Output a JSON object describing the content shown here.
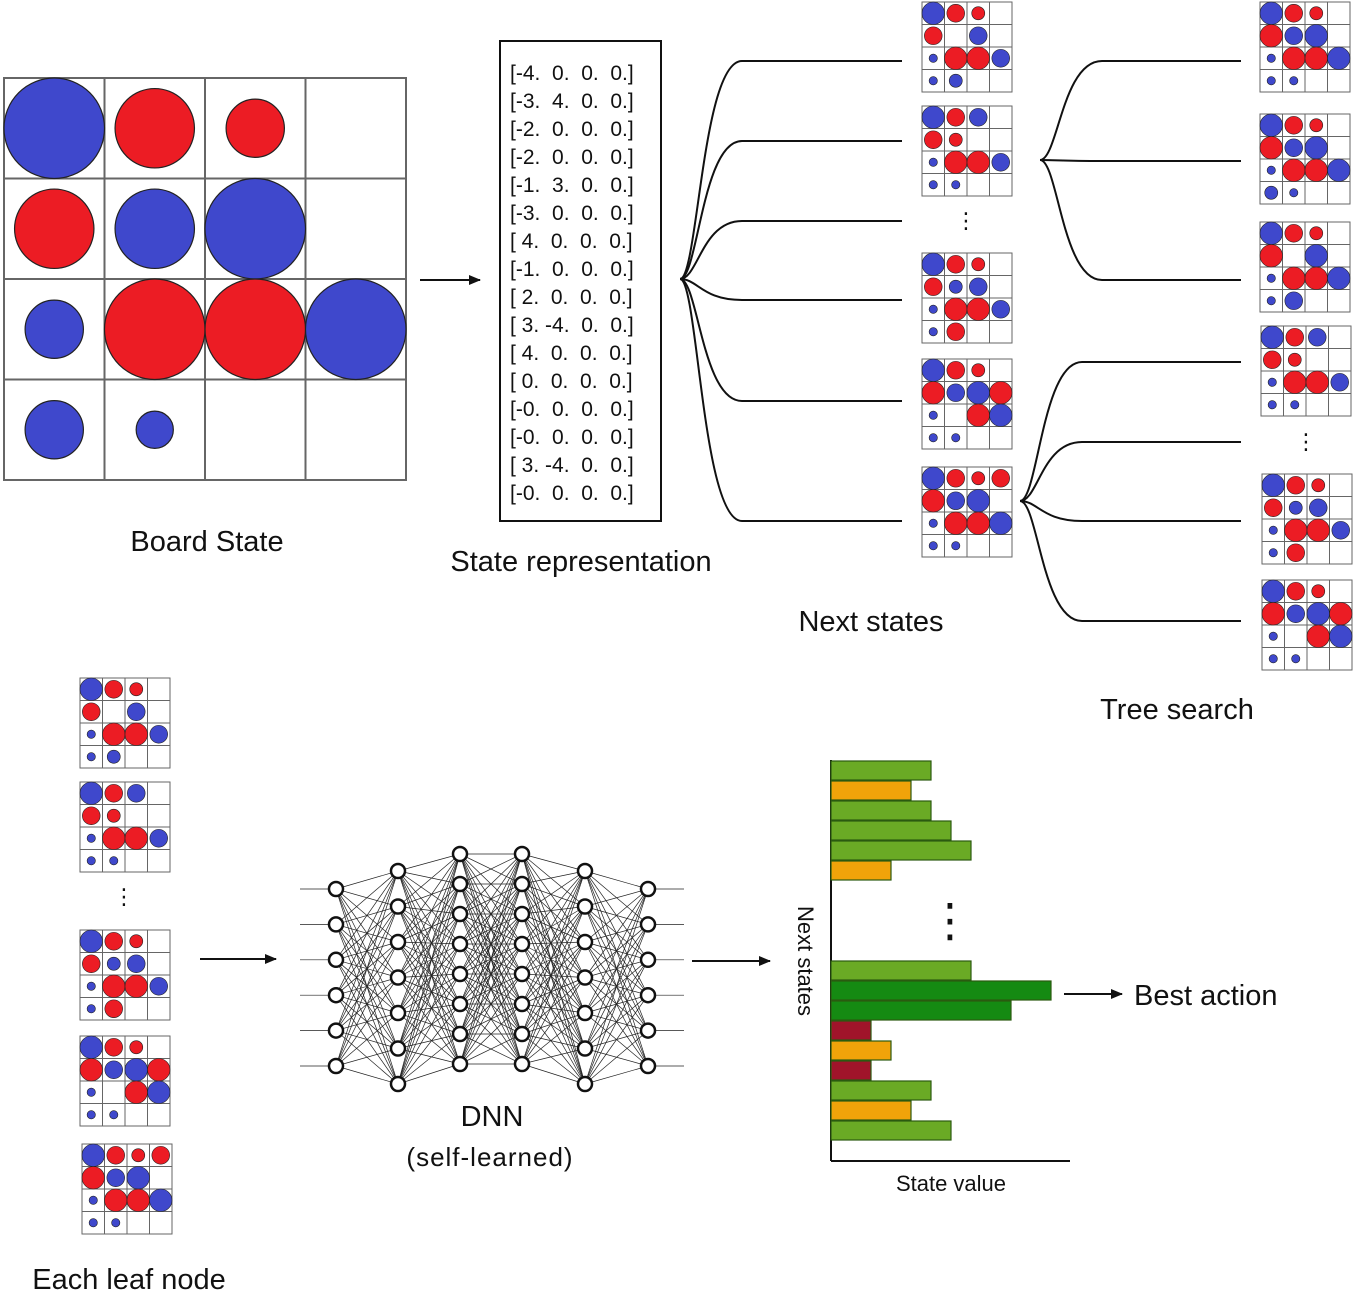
{
  "labels": {
    "board_state": "Board State",
    "state_representation": "State representation",
    "next_states": "Next states",
    "tree_search": "Tree search",
    "each_leaf_node": "Each leaf node",
    "dnn": "DNN",
    "dnn_sub": "(self-learned)",
    "chart_y_axis": "Next states",
    "chart_x_axis": "State value",
    "best_action": "Best action",
    "ellipsis": "⋮"
  },
  "state_matrix": [
    "[-4.  0.  0.  0.]",
    "[-3.  4.  0.  0.]",
    "[-2.  0.  0.  0.]",
    "[-2.  0.  0.  0.]",
    "[-1.  3.  0.  0.]",
    "[-3.  0.  0.  0.]",
    "[ 4.  0.  0.  0.]",
    "[-1.  0.  0.  0.]",
    "[ 2.  0.  0.  0.]",
    "[ 3. -4.  0.  0.]",
    "[ 4.  0.  0.  0.]",
    "[ 0.  0.  0.  0.]",
    "[-0.  0.  0.  0.]",
    "[-0.  0.  0.  0.]",
    "[ 3. -4.  0.  0.]",
    "[-0.  0.  0.  0.]"
  ],
  "colors": {
    "red": "#ec1c24",
    "blue": "#3f48cc",
    "grid": "#666666",
    "bar_green": "#6aaa25",
    "bar_dark_green": "#158a12",
    "bar_orange": "#f0a30a",
    "bar_dark_red": "#a0142a"
  },
  "board": [
    [
      -4,
      3,
      2,
      0
    ],
    [
      3,
      -3,
      -4,
      0
    ],
    [
      -2,
      4,
      4,
      -4
    ],
    [
      -2,
      -1,
      0,
      0
    ]
  ],
  "chart_data": {
    "type": "bar",
    "orientation": "horizontal",
    "title": "",
    "xlabel": "State value",
    "ylabel": "Next states",
    "values": [
      5,
      4,
      5,
      6,
      7,
      3,
      null,
      7,
      11,
      9,
      2,
      3,
      2,
      5,
      4,
      6
    ],
    "bar_colors": [
      "green",
      "orange",
      "green",
      "green",
      "green",
      "orange",
      "gap",
      "green",
      "dark-green",
      "dark-green",
      "dark-red",
      "orange",
      "dark-red",
      "green",
      "orange",
      "green"
    ],
    "best_index": 8,
    "annotation": "Best action",
    "grid": false,
    "legend": "none"
  },
  "dnn": {
    "layers": [
      6,
      7,
      8,
      8,
      7,
      6
    ]
  }
}
